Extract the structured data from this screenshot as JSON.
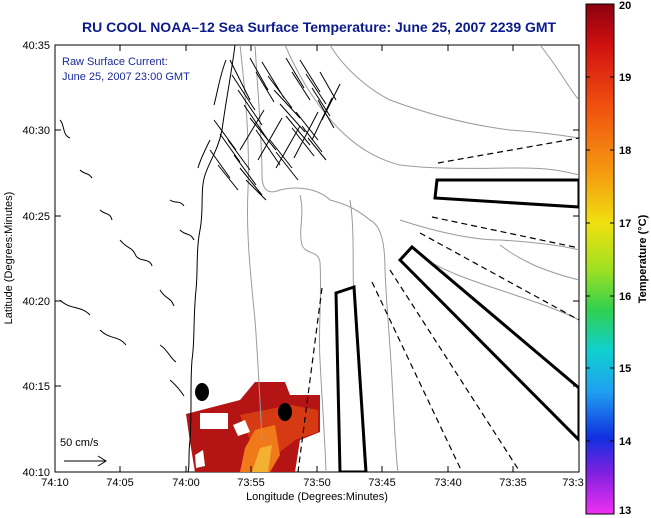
{
  "figure": {
    "title": "RU COOL   NOAA–12  Sea Surface Temperature:  June 25, 2007 2239 GMT",
    "current_note_line1": "Raw Surface Current:",
    "current_note_line2": "June 25, 2007 23:00 GMT",
    "scale_label": "50 cm/s",
    "xlabel": "Longitude (Degrees:Minutes)",
    "ylabel": "Latitude (Degrees:Minutes)",
    "x_ticks": [
      "74:10",
      "74:05",
      "74:00",
      "73:55",
      "73:50",
      "73:45",
      "73:40",
      "73:35",
      "73:3"
    ],
    "y_ticks": [
      "40:35",
      "40:30",
      "40:25",
      "40:20",
      "40:15",
      "40:10"
    ],
    "colorbar": {
      "label": "Temperature (°C)",
      "ticks": [
        "20",
        "19",
        "18",
        "17",
        "16",
        "15",
        "14",
        "13"
      ],
      "min": 13,
      "max": 20
    },
    "colors": {
      "title": "#0b1a8c",
      "note": "#1a2a9a",
      "sst_high": "#b01010",
      "sst_mid": "#e05a10",
      "contour": "#999999",
      "coast": "#000000"
    }
  }
}
